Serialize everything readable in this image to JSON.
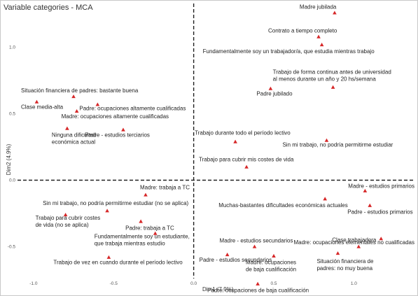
{
  "chart_data": {
    "type": "scatter",
    "title": "Variable categories - MCA",
    "xlabel": "Dim1 (7.9%)",
    "ylabel": "Dim2 (4.9%)",
    "xlim": [
      -1.1,
      1.37
    ],
    "ylim": [
      -0.74,
      1.33
    ],
    "xticks": [
      -1.0,
      -0.5,
      0.0,
      0.5,
      1.0
    ],
    "yticks": [
      -0.5,
      0.0,
      0.5,
      1.0
    ],
    "tick_labels_x": [
      "-1.0",
      "-0.5",
      "0.0",
      "0.5",
      "1.0"
    ],
    "tick_labels_y": [
      "-0.5",
      "0.0",
      "0.5",
      "1.0"
    ],
    "reference_lines": {
      "x": 0,
      "y": 0,
      "style": "dashed"
    },
    "grid": false,
    "marker_color": "#d62728",
    "points": [
      {
        "label": "Madre jubilada",
        "x": 0.88,
        "y": 1.26
      },
      {
        "label": "Contrato a tiempo completo",
        "x": 0.78,
        "y": 1.08
      },
      {
        "label": "Fundamentalmente soy un trabajador/a, que estudia mientras trabajo",
        "x": 0.8,
        "y": 1.02
      },
      {
        "label": "Trabajo de forma continua antes de universidad\nal menos durante un año y 20 hs/semana",
        "x": 0.87,
        "y": 0.7
      },
      {
        "label": "Padre jubilado",
        "x": 0.48,
        "y": 0.69
      },
      {
        "label": "Situación financiera de padres: bastante buena",
        "x": -0.75,
        "y": 0.63
      },
      {
        "label": "Clase media-alta",
        "x": -0.98,
        "y": 0.59
      },
      {
        "label": "Padre: ocupaciones altamente cualificadas",
        "x": -0.6,
        "y": 0.57
      },
      {
        "label": "Madre: ocupaciones altamente cualificadas",
        "x": -0.73,
        "y": 0.52
      },
      {
        "label": "Ninguna dificultad\neconómica actual",
        "x": -0.79,
        "y": 0.39
      },
      {
        "label": "Padre - estudios terciarios",
        "x": -0.44,
        "y": 0.38
      },
      {
        "label": "Trabajo durante todo el período lectivo",
        "x": 0.26,
        "y": 0.29
      },
      {
        "label": "Sin mi trabajo, no podría permitirme estudiar",
        "x": 0.83,
        "y": 0.3
      },
      {
        "label": "Trabajo para cubrir mis costes de vida",
        "x": 0.33,
        "y": 0.1
      },
      {
        "label": "Madre: trabaja a TC",
        "x": -0.3,
        "y": -0.11
      },
      {
        "label": "Madre - estudios primarios",
        "x": 1.07,
        "y": -0.08
      },
      {
        "label": "Muchas-bastantes dificultades económicas actuales",
        "x": 0.82,
        "y": -0.14
      },
      {
        "label": "Padre - estudios primarios",
        "x": 1.1,
        "y": -0.19
      },
      {
        "label": "Sin mi trabajo, no podría permitirme estudiar (no se aplica)",
        "x": -0.54,
        "y": -0.23
      },
      {
        "label": "Trabajo para cubrir costes\nde vida (no se aplica)",
        "x": -0.8,
        "y": -0.26
      },
      {
        "label": "Padre: trabaja a TC",
        "x": -0.33,
        "y": -0.31
      },
      {
        "label": "Fundamentalmente soy un estudiante,\nque trabaja mientras estudio",
        "x": -0.24,
        "y": -0.4
      },
      {
        "label": "Madre: ocupaciones elementales no cualificadas",
        "x": 1.17,
        "y": -0.44
      },
      {
        "label": "Madre - estudios secundarios",
        "x": 0.38,
        "y": -0.5
      },
      {
        "label": "Clase trabajadora",
        "x": 1.03,
        "y": -0.5
      },
      {
        "label": "Padre - estudios secundarios",
        "x": 0.21,
        "y": -0.56
      },
      {
        "label": "Madre: ocupaciones\nde baja cualificación",
        "x": 0.5,
        "y": -0.57
      },
      {
        "label": "Situación financiera de\npadres: no muy buena",
        "x": 0.9,
        "y": -0.55
      },
      {
        "label": "Trabajo de vez en cuando durante el período lectivo",
        "x": -0.53,
        "y": -0.58
      },
      {
        "label": "Padre: ocupaciones de baja cualificación",
        "x": 0.4,
        "y": -0.78
      }
    ]
  }
}
